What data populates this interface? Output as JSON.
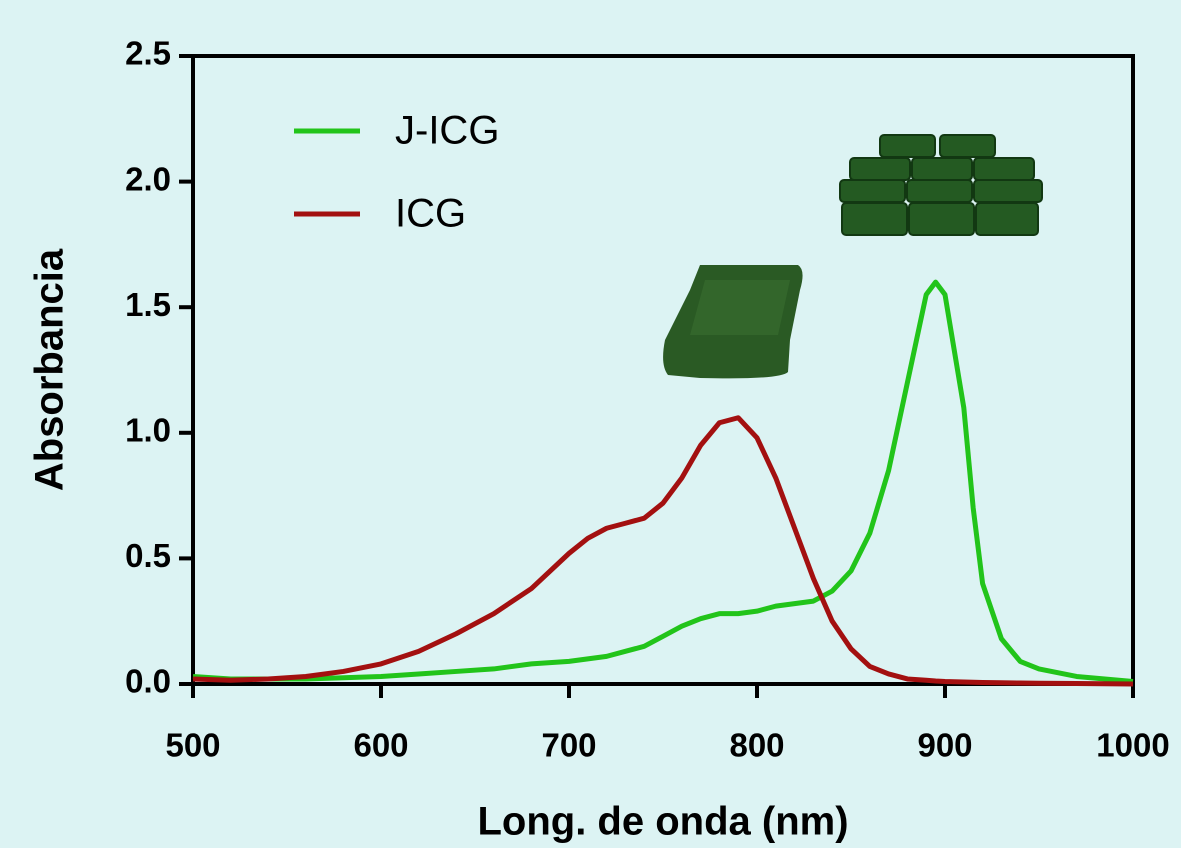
{
  "chart_data": {
    "type": "line",
    "xlabel": "Long. de onda (nm)",
    "ylabel": "Absorbancia",
    "x": [
      500,
      520,
      540,
      560,
      580,
      600,
      620,
      640,
      660,
      680,
      700,
      710,
      720,
      730,
      740,
      750,
      760,
      770,
      780,
      790,
      800,
      810,
      820,
      830,
      840,
      850,
      860,
      870,
      880,
      890,
      895,
      900,
      910,
      915,
      920,
      930,
      940,
      950,
      970,
      1000
    ],
    "series": [
      {
        "name": "J-ICG",
        "color": "#22c41a",
        "values": [
          0.03,
          0.02,
          0.02,
          0.02,
          0.025,
          0.03,
          0.04,
          0.05,
          0.06,
          0.08,
          0.09,
          0.1,
          0.11,
          0.13,
          0.15,
          0.19,
          0.23,
          0.26,
          0.28,
          0.28,
          0.29,
          0.31,
          0.32,
          0.33,
          0.37,
          0.45,
          0.6,
          0.85,
          1.2,
          1.55,
          1.6,
          1.55,
          1.1,
          0.7,
          0.4,
          0.18,
          0.09,
          0.06,
          0.03,
          0.01
        ]
      },
      {
        "name": "ICG",
        "color": "#a31010",
        "values": [
          0.02,
          0.015,
          0.02,
          0.03,
          0.05,
          0.08,
          0.13,
          0.2,
          0.28,
          0.38,
          0.52,
          0.58,
          0.62,
          0.64,
          0.66,
          0.72,
          0.82,
          0.95,
          1.04,
          1.06,
          0.98,
          0.82,
          0.62,
          0.42,
          0.25,
          0.14,
          0.07,
          0.04,
          0.02,
          0.015,
          0.012,
          0.01,
          0.008,
          0.007,
          0.006,
          0.005,
          0.004,
          0.003,
          0.002,
          0
        ]
      }
    ],
    "xlim": [
      500,
      1000
    ],
    "xticks": [
      500,
      600,
      700,
      800,
      900,
      1000
    ],
    "ylim": [
      0,
      2.5
    ],
    "yticks": [
      {
        "value": 0,
        "label": "0.0"
      },
      {
        "value": 0.5,
        "label": "0.5"
      },
      {
        "value": 1,
        "label": "1.0"
      },
      {
        "value": 1.5,
        "label": "1.5"
      },
      {
        "value": 2,
        "label": "2.0"
      },
      {
        "value": 2.5,
        "label": "2.5"
      }
    ],
    "grid": false,
    "legend": "upper left"
  }
}
